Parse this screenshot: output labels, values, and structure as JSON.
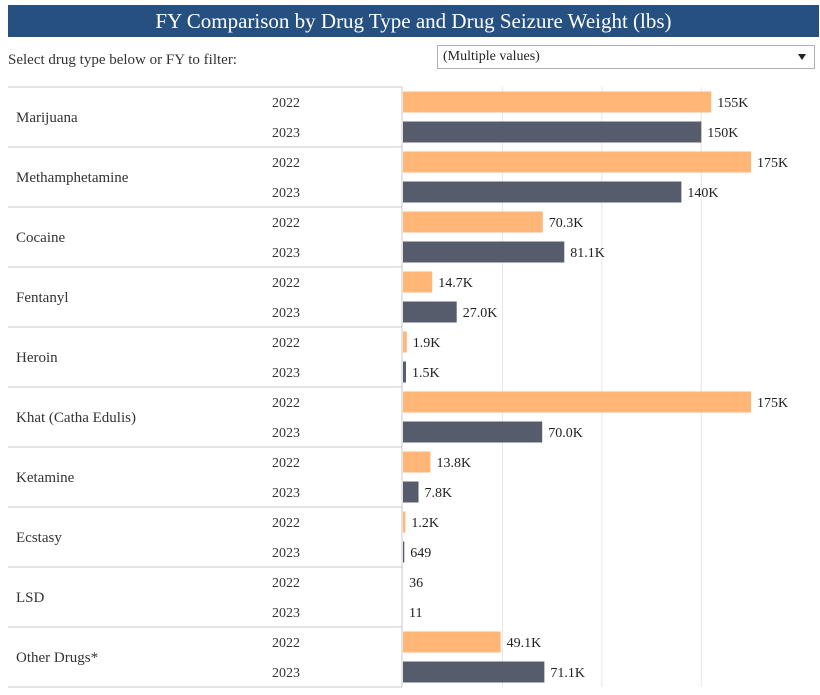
{
  "header": {
    "title": "FY Comparison by Drug Type and Drug Seizure Weight (lbs)",
    "filter_label": "Select drug type below or FY to filter:",
    "filter_value": "(Multiple values)"
  },
  "colors": {
    "fy2022": "#ffb677",
    "fy2023": "#575c6d",
    "title_bg": "#25507f"
  },
  "chart_data": {
    "type": "bar",
    "orientation": "horizontal",
    "title": "FY Comparison by Drug Type and Drug Seizure Weight (lbs)",
    "categories": [
      "Marijuana",
      "Methamphetamine",
      "Cocaine",
      "Fentanyl",
      "Heroin",
      "Khat (Catha Edulis)",
      "Ketamine",
      "Ecstasy",
      "LSD",
      "Other Drugs*"
    ],
    "series": [
      {
        "name": "2022",
        "values": [
          155000,
          175000,
          70300,
          14700,
          1900,
          175000,
          13800,
          1200,
          36,
          49100
        ],
        "labels": [
          "155K",
          "175K",
          "70.3K",
          "14.7K",
          "1.9K",
          "175K",
          "13.8K",
          "1.2K",
          "36",
          "49.1K"
        ]
      },
      {
        "name": "2023",
        "values": [
          150000,
          140000,
          81100,
          27000,
          1500,
          70000,
          7800,
          649,
          11,
          71100
        ],
        "labels": [
          "150K",
          "140K",
          "81.1K",
          "27.0K",
          "1.5K",
          "70.0K",
          "7.8K",
          "649",
          "11",
          "71.1K"
        ]
      }
    ],
    "xlim": [
      0,
      200000
    ],
    "grid": true,
    "legend": "none"
  }
}
